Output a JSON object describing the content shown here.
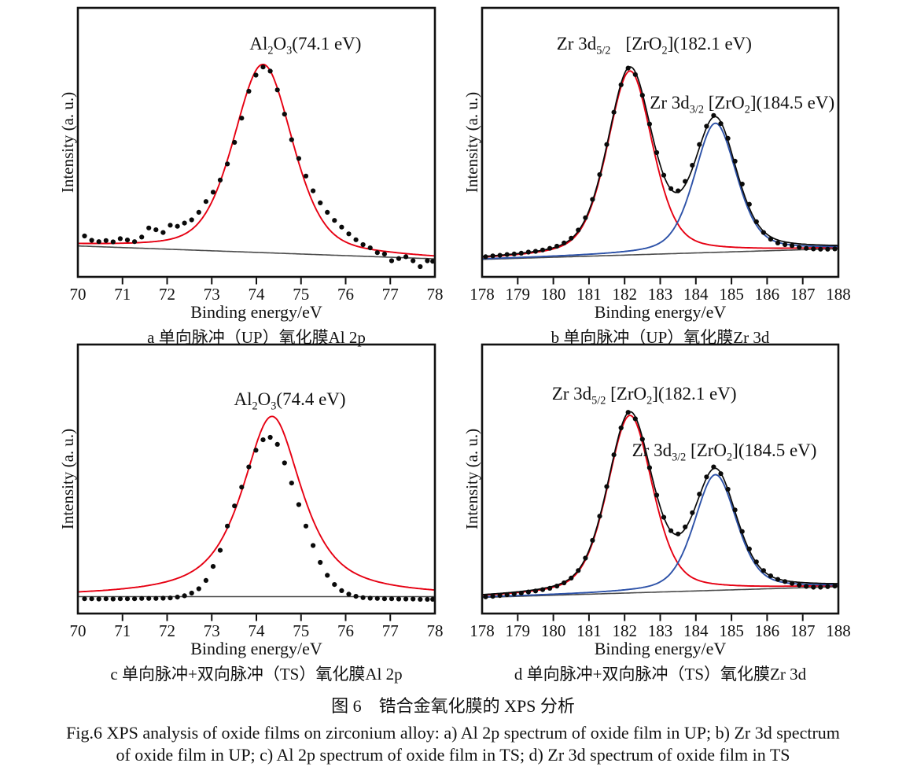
{
  "colors": {
    "fit_red": "#e60012",
    "fit_blue": "#2d52a8",
    "baseline_gray": "#4a4a4a",
    "envelope_black": "#0a0a0a",
    "dots": "#0a0a0a",
    "frame": "#111111"
  },
  "figure_captions": {
    "zh": "图 6　锆合金氧化膜的 XPS 分析",
    "en_line1": "Fig.6 XPS analysis of oxide films on zirconium alloy: a) Al 2p spectrum of oxide film in UP; b) Zr 3d spectrum",
    "en_line2": "of oxide film in UP; c) Al 2p spectrum of oxide film in TS; d) Zr 3d spectrum of oxide film in TS"
  },
  "chart_data": [
    {
      "id": "a",
      "type": "scatter",
      "subtype": "xps_spectrum",
      "caption": "a 单向脉冲（UP）氧化膜Al 2p",
      "xlabel": "Binding energy/eV",
      "ylabel": "Intensity (a. u.)",
      "xlim": [
        70,
        78
      ],
      "xticks": [
        70,
        71,
        72,
        73,
        74,
        75,
        76,
        77,
        78
      ],
      "ylim": [
        0,
        1
      ],
      "grid": false,
      "baseline": {
        "y_left": 0.115,
        "y_right": 0.067
      },
      "show_envelope": false,
      "peaks": [
        {
          "assignment": "Al2O3",
          "binding_energy_eV": 74.1,
          "center": 74.15,
          "hwhm": 0.78,
          "amplitude": 0.7,
          "lorentz_fraction": 0.4,
          "color_key": "fit_red"
        }
      ],
      "annotations": [
        {
          "x": 75.1,
          "y": 0.86,
          "text": "Al2O3(74.1 eV)",
          "segments": [
            {
              "t": "Al"
            },
            {
              "t": "2",
              "sub": true
            },
            {
              "t": "O"
            },
            {
              "t": "3",
              "sub": true
            },
            {
              "t": "(74.1 eV)"
            }
          ]
        }
      ],
      "points": [
        [
          70.15,
          0.152
        ],
        [
          70.31,
          0.136
        ],
        [
          70.47,
          0.131
        ],
        [
          70.63,
          0.135
        ],
        [
          70.79,
          0.13
        ],
        [
          70.95,
          0.142
        ],
        [
          71.11,
          0.137
        ],
        [
          71.27,
          0.131
        ],
        [
          71.43,
          0.148
        ],
        [
          71.59,
          0.182
        ],
        [
          71.75,
          0.175
        ],
        [
          71.91,
          0.165
        ],
        [
          72.07,
          0.192
        ],
        [
          72.23,
          0.188
        ],
        [
          72.39,
          0.2
        ],
        [
          72.55,
          0.212
        ],
        [
          72.71,
          0.24
        ],
        [
          72.87,
          0.28
        ],
        [
          73.03,
          0.315
        ],
        [
          73.19,
          0.36
        ],
        [
          73.35,
          0.42
        ],
        [
          73.51,
          0.5
        ],
        [
          73.67,
          0.59
        ],
        [
          73.83,
          0.69
        ],
        [
          73.99,
          0.75
        ],
        [
          74.15,
          0.78
        ],
        [
          74.31,
          0.765
        ],
        [
          74.47,
          0.695
        ],
        [
          74.63,
          0.605
        ],
        [
          74.79,
          0.51
        ],
        [
          74.95,
          0.44
        ],
        [
          75.11,
          0.375
        ],
        [
          75.27,
          0.32
        ],
        [
          75.43,
          0.275
        ],
        [
          75.59,
          0.24
        ],
        [
          75.75,
          0.21
        ],
        [
          75.91,
          0.185
        ],
        [
          76.07,
          0.16
        ],
        [
          76.23,
          0.138
        ],
        [
          76.39,
          0.12
        ],
        [
          76.55,
          0.108
        ],
        [
          76.71,
          0.09
        ],
        [
          76.87,
          0.085
        ],
        [
          77.03,
          0.06
        ],
        [
          77.19,
          0.068
        ],
        [
          77.35,
          0.075
        ],
        [
          77.51,
          0.06
        ],
        [
          77.67,
          0.038
        ],
        [
          77.83,
          0.06
        ],
        [
          77.95,
          0.058
        ]
      ]
    },
    {
      "id": "b",
      "type": "scatter",
      "subtype": "xps_spectrum",
      "caption": "b 单向脉冲（UP）氧化膜Zr 3d",
      "xlabel": "Binding energy/eV",
      "ylabel": "Intensity (a. u.)",
      "xlim": [
        178,
        188
      ],
      "xticks": [
        178,
        179,
        180,
        181,
        182,
        183,
        184,
        185,
        186,
        187,
        188
      ],
      "ylim": [
        0,
        1
      ],
      "grid": false,
      "baseline": {
        "y_left": 0.065,
        "y_right": 0.105
      },
      "show_envelope": true,
      "peaks": [
        {
          "assignment": "Zr 3d5/2 [ZrO2]",
          "binding_energy_eV": 182.1,
          "center": 182.15,
          "hwhm": 0.75,
          "amplitude": 0.684,
          "lorentz_fraction": 0.4,
          "color_key": "fit_red"
        },
        {
          "assignment": "Zr 3d3/2 [ZrO2]",
          "binding_energy_eV": 184.5,
          "center": 184.55,
          "hwhm": 0.7,
          "amplitude": 0.48,
          "lorentz_fraction": 0.4,
          "color_key": "fit_blue"
        }
      ],
      "annotations": [
        {
          "x": 180.85,
          "y": 0.86,
          "text": "Zr 3d5/2",
          "segments": [
            {
              "t": "Zr 3d"
            },
            {
              "t": "5/2",
              "sub": true
            }
          ]
        },
        {
          "x": 183.8,
          "y": 0.86,
          "text": "[ZrO2](182.1 eV)",
          "segments": [
            {
              "t": "[ZrO"
            },
            {
              "t": "2",
              "sub": true
            },
            {
              "t": "](182.1 eV)"
            }
          ]
        },
        {
          "x": 185.3,
          "y": 0.64,
          "text": "Zr 3d3/2 [ZrO2](184.5 eV)",
          "segments": [
            {
              "t": "Zr 3d"
            },
            {
              "t": "3/2",
              "sub": true
            },
            {
              "t": " [ZrO"
            },
            {
              "t": "2",
              "sub": true
            },
            {
              "t": "](184.5 eV)"
            }
          ]
        }
      ],
      "points": [
        [
          178.1,
          0.075
        ],
        [
          178.3,
          0.078
        ],
        [
          178.5,
          0.08
        ],
        [
          178.7,
          0.083
        ],
        [
          178.9,
          0.085
        ],
        [
          179.1,
          0.088
        ],
        [
          179.3,
          0.092
        ],
        [
          179.5,
          0.095
        ],
        [
          179.7,
          0.1
        ],
        [
          179.9,
          0.106
        ],
        [
          180.1,
          0.114
        ],
        [
          180.3,
          0.126
        ],
        [
          180.5,
          0.144
        ],
        [
          180.7,
          0.174
        ],
        [
          180.9,
          0.22
        ],
        [
          181.1,
          0.288
        ],
        [
          181.3,
          0.38
        ],
        [
          181.5,
          0.492
        ],
        [
          181.7,
          0.612
        ],
        [
          181.9,
          0.714
        ],
        [
          182.1,
          0.776
        ],
        [
          182.3,
          0.752
        ],
        [
          182.5,
          0.675
        ],
        [
          182.7,
          0.568
        ],
        [
          182.9,
          0.462
        ],
        [
          183.1,
          0.378
        ],
        [
          183.3,
          0.328
        ],
        [
          183.5,
          0.32
        ],
        [
          183.7,
          0.355
        ],
        [
          183.9,
          0.415
        ],
        [
          184.1,
          0.492
        ],
        [
          184.3,
          0.56
        ],
        [
          184.5,
          0.6
        ],
        [
          184.7,
          0.57
        ],
        [
          184.9,
          0.515
        ],
        [
          185.1,
          0.43
        ],
        [
          185.3,
          0.345
        ],
        [
          185.5,
          0.27
        ],
        [
          185.7,
          0.205
        ],
        [
          185.9,
          0.165
        ],
        [
          186.1,
          0.14
        ],
        [
          186.3,
          0.126
        ],
        [
          186.5,
          0.12
        ],
        [
          186.7,
          0.116
        ],
        [
          186.9,
          0.11
        ],
        [
          187.1,
          0.106
        ],
        [
          187.3,
          0.104
        ],
        [
          187.5,
          0.103
        ],
        [
          187.7,
          0.103
        ],
        [
          187.9,
          0.104
        ]
      ]
    },
    {
      "id": "c",
      "type": "scatter",
      "subtype": "xps_spectrum",
      "caption": "c 单向脉冲+双向脉冲（TS）氧化膜Al 2p",
      "xlabel": "Binding energy/eV",
      "ylabel": "Intensity (a. u.)",
      "xlim": [
        70,
        78
      ],
      "xticks": [
        70,
        71,
        72,
        73,
        74,
        75,
        76,
        77,
        78
      ],
      "ylim": [
        0,
        1
      ],
      "grid": false,
      "baseline": {
        "y_left": 0.063,
        "y_right": 0.063
      },
      "show_envelope": false,
      "peaks": [
        {
          "assignment": "Al2O3",
          "binding_energy_eV": 74.4,
          "center": 74.35,
          "hwhm": 0.8,
          "amplitude": 0.67,
          "lorentz_fraction": 0.8,
          "color_key": "fit_red"
        }
      ],
      "annotations": [
        {
          "x": 74.75,
          "y": 0.79,
          "text": "Al2O3(74.4 eV)",
          "segments": [
            {
              "t": "Al"
            },
            {
              "t": "2",
              "sub": true
            },
            {
              "t": "O"
            },
            {
              "t": "3",
              "sub": true
            },
            {
              "t": "(74.4 eV)"
            }
          ]
        }
      ],
      "points": [
        [
          70.15,
          0.055
        ],
        [
          70.31,
          0.055
        ],
        [
          70.47,
          0.054
        ],
        [
          70.63,
          0.055
        ],
        [
          70.79,
          0.054
        ],
        [
          70.95,
          0.055
        ],
        [
          71.11,
          0.055
        ],
        [
          71.27,
          0.055
        ],
        [
          71.43,
          0.056
        ],
        [
          71.59,
          0.056
        ],
        [
          71.75,
          0.056
        ],
        [
          71.91,
          0.057
        ],
        [
          72.07,
          0.058
        ],
        [
          72.23,
          0.061
        ],
        [
          72.39,
          0.066
        ],
        [
          72.55,
          0.076
        ],
        [
          72.71,
          0.092
        ],
        [
          72.87,
          0.123
        ],
        [
          73.03,
          0.175
        ],
        [
          73.19,
          0.235
        ],
        [
          73.35,
          0.325
        ],
        [
          73.51,
          0.4
        ],
        [
          73.67,
          0.47
        ],
        [
          73.83,
          0.545
        ],
        [
          73.99,
          0.607
        ],
        [
          74.15,
          0.646
        ],
        [
          74.31,
          0.655
        ],
        [
          74.47,
          0.629
        ],
        [
          74.63,
          0.56
        ],
        [
          74.79,
          0.485
        ],
        [
          74.95,
          0.405
        ],
        [
          75.11,
          0.325
        ],
        [
          75.27,
          0.253
        ],
        [
          75.43,
          0.19
        ],
        [
          75.59,
          0.142
        ],
        [
          75.75,
          0.108
        ],
        [
          75.91,
          0.085
        ],
        [
          76.07,
          0.072
        ],
        [
          76.23,
          0.064
        ],
        [
          76.39,
          0.059
        ],
        [
          76.55,
          0.057
        ],
        [
          76.71,
          0.056
        ],
        [
          76.87,
          0.055
        ],
        [
          77.03,
          0.055
        ],
        [
          77.19,
          0.054
        ],
        [
          77.35,
          0.054
        ],
        [
          77.51,
          0.054
        ],
        [
          77.67,
          0.053
        ],
        [
          77.83,
          0.053
        ],
        [
          77.95,
          0.053
        ]
      ]
    },
    {
      "id": "d",
      "type": "scatter",
      "subtype": "xps_spectrum",
      "caption": "d 单向脉冲+双向脉冲（TS）氧化膜Zr 3d",
      "xlabel": "Binding energy/eV",
      "ylabel": "Intensity (a. u.)",
      "xlim": [
        178,
        188
      ],
      "xticks": [
        178,
        179,
        180,
        181,
        182,
        183,
        184,
        185,
        186,
        187,
        188
      ],
      "ylim": [
        0,
        1
      ],
      "grid": false,
      "baseline": {
        "y_left": 0.06,
        "y_right": 0.1
      },
      "show_envelope": true,
      "peaks": [
        {
          "assignment": "Zr 3d5/2 [ZrO2]",
          "binding_energy_eV": 182.1,
          "center": 182.15,
          "hwhm": 0.75,
          "amplitude": 0.66,
          "lorentz_fraction": 0.4,
          "color_key": "fit_red"
        },
        {
          "assignment": "Zr 3d3/2 [ZrO2]",
          "binding_energy_eV": 184.5,
          "center": 184.55,
          "hwhm": 0.7,
          "amplitude": 0.43,
          "lorentz_fraction": 0.4,
          "color_key": "fit_blue"
        }
      ],
      "annotations": [
        {
          "x": 182.55,
          "y": 0.81,
          "text": "Zr 3d5/2 [ZrO2](182.1 eV)",
          "segments": [
            {
              "t": "Zr 3d"
            },
            {
              "t": "5/2",
              "sub": true
            },
            {
              "t": " [ZrO"
            },
            {
              "t": "2",
              "sub": true
            },
            {
              "t": "](182.1 eV)"
            }
          ]
        },
        {
          "x": 184.8,
          "y": 0.6,
          "text": "Zr 3d3/2 [ZrO2](184.5 eV)",
          "segments": [
            {
              "t": "Zr 3d"
            },
            {
              "t": "3/2",
              "sub": true
            },
            {
              "t": " [ZrO"
            },
            {
              "t": "2",
              "sub": true
            },
            {
              "t": "](184.5 eV)"
            }
          ]
        }
      ],
      "points": [
        [
          178.1,
          0.062
        ],
        [
          178.3,
          0.064
        ],
        [
          178.5,
          0.067
        ],
        [
          178.7,
          0.07
        ],
        [
          178.9,
          0.073
        ],
        [
          179.1,
          0.076
        ],
        [
          179.3,
          0.08
        ],
        [
          179.5,
          0.084
        ],
        [
          179.7,
          0.089
        ],
        [
          179.9,
          0.094
        ],
        [
          180.1,
          0.102
        ],
        [
          180.3,
          0.114
        ],
        [
          180.5,
          0.132
        ],
        [
          180.7,
          0.16
        ],
        [
          180.9,
          0.206
        ],
        [
          181.1,
          0.272
        ],
        [
          181.3,
          0.362
        ],
        [
          181.5,
          0.472
        ],
        [
          181.7,
          0.59
        ],
        [
          181.9,
          0.69
        ],
        [
          182.1,
          0.748
        ],
        [
          182.3,
          0.724
        ],
        [
          182.5,
          0.648
        ],
        [
          182.7,
          0.542
        ],
        [
          182.9,
          0.44
        ],
        [
          183.1,
          0.358
        ],
        [
          183.3,
          0.308
        ],
        [
          183.5,
          0.296
        ],
        [
          183.7,
          0.322
        ],
        [
          183.9,
          0.375
        ],
        [
          184.1,
          0.444
        ],
        [
          184.3,
          0.508
        ],
        [
          184.5,
          0.545
        ],
        [
          184.7,
          0.52
        ],
        [
          184.9,
          0.462
        ],
        [
          185.1,
          0.385
        ],
        [
          185.3,
          0.305
        ],
        [
          185.5,
          0.24
        ],
        [
          185.7,
          0.192
        ],
        [
          185.9,
          0.16
        ],
        [
          186.1,
          0.14
        ],
        [
          186.3,
          0.127
        ],
        [
          186.5,
          0.119
        ],
        [
          186.7,
          0.112
        ],
        [
          186.9,
          0.106
        ],
        [
          187.1,
          0.101
        ],
        [
          187.3,
          0.098
        ],
        [
          187.5,
          0.098
        ],
        [
          187.7,
          0.1
        ],
        [
          187.9,
          0.102
        ]
      ]
    }
  ]
}
